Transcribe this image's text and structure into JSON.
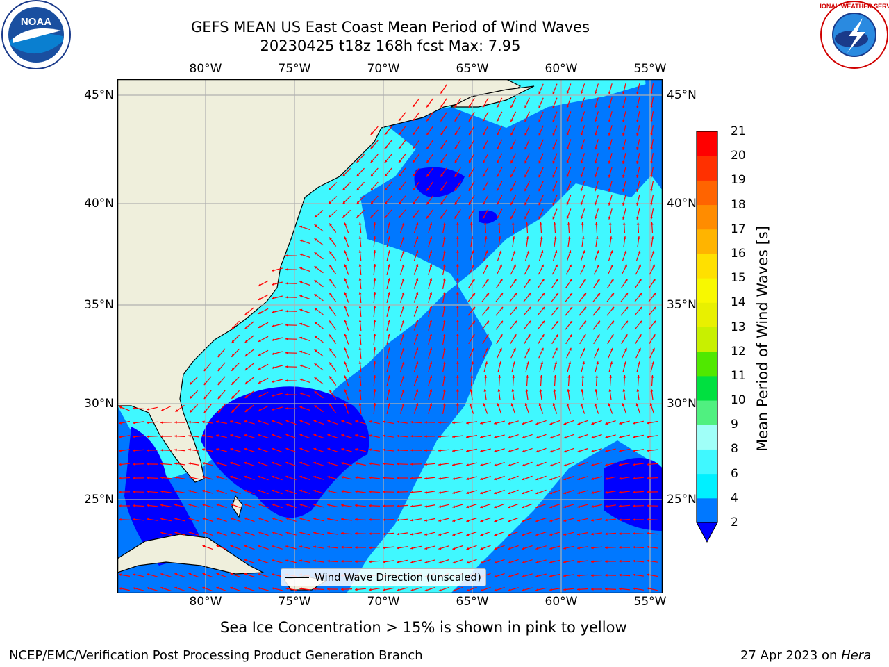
{
  "header": {
    "title_line1": "GEFS MEAN US East Coast Mean Period of Wind Waves",
    "title_line2": "20230425 t18z 168h fcst   Max: 7.95"
  },
  "logos": {
    "left": {
      "name": "noaa-logo",
      "text": "NOAA"
    },
    "right": {
      "name": "nws-logo",
      "text": "NATIONAL WEATHER SERVICE"
    }
  },
  "map": {
    "lon_ticks": [
      "80°W",
      "75°W",
      "70°W",
      "65°W",
      "60°W",
      "55°W"
    ],
    "lat_ticks": [
      "45°N",
      "40°N",
      "35°N",
      "30°N",
      "25°N"
    ],
    "lon_range": [
      -85,
      -54.3
    ],
    "lat_range": [
      20.3,
      45.8
    ],
    "legend_text": "Wind Wave Direction (unscaled)",
    "colors": {
      "land": "#efefdc",
      "coast": "#000000",
      "grid": "#b0b0b0",
      "arrow": "#ff0000"
    }
  },
  "colorbar": {
    "label": "Mean Period of Wind Waves [s]",
    "tick_labels": [
      "21",
      "20",
      "19",
      "18",
      "17",
      "16",
      "15",
      "14",
      "13",
      "12",
      "11",
      "10",
      "9",
      "8",
      "6",
      "4",
      "2"
    ],
    "bins": [
      {
        "range": "2-4",
        "color": "#0078ff"
      },
      {
        "range": "4-6",
        "color": "#00f0ff"
      },
      {
        "range": "6-8",
        "color": "#40f8ff"
      },
      {
        "range": "8-9",
        "color": "#a0fff8"
      },
      {
        "range": "9-10",
        "color": "#50f080"
      },
      {
        "range": "10-11",
        "color": "#00e040"
      },
      {
        "range": "11-12",
        "color": "#50e800"
      },
      {
        "range": "12-13",
        "color": "#c8f000"
      },
      {
        "range": "13-14",
        "color": "#e8f000"
      },
      {
        "range": "14-15",
        "color": "#f8f800"
      },
      {
        "range": "15-16",
        "color": "#ffe000"
      },
      {
        "range": "16-17",
        "color": "#ffb400"
      },
      {
        "range": "17-18",
        "color": "#ff8c00"
      },
      {
        "range": "18-19",
        "color": "#ff6400"
      },
      {
        "range": "19-20",
        "color": "#ff3000"
      },
      {
        "range": "20-21",
        "color": "#ff0000"
      }
    ],
    "under_color": "#0000ff"
  },
  "note": "Sea Ice Concentration > 15% is shown in pink to yellow",
  "footer": {
    "left": "NCEP/EMC/Verification Post Processing Product Generation Branch",
    "date": "27 Apr 2023 on",
    "machine": "Hera"
  }
}
